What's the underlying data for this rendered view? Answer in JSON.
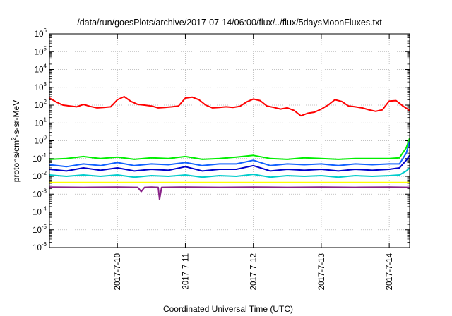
{
  "chart_data": {
    "type": "line",
    "title": "/data/run/goesPlots/archive/2017-07-14/06:00/flux/../flux/5daysMoonFluxes.txt",
    "xlabel": "Coordinated Universal Time (UTC)",
    "ylabel_base": "protons/cm",
    "ylabel_sup": "2",
    "ylabel_rest": "-s-sr-MeV",
    "yscale": "log",
    "ylim_exp": [
      -6,
      6
    ],
    "ytick_exponents": [
      "-6",
      "-5",
      "-4",
      "-3",
      "-2",
      "-1",
      "0",
      "1",
      "2",
      "3",
      "4",
      "5",
      "6"
    ],
    "xlim_days": [
      9.0,
      14.3
    ],
    "xticks": [
      {
        "label": "2017-7-10",
        "day": 10
      },
      {
        "label": "2017-7-11",
        "day": 11
      },
      {
        "label": "2017-7-12",
        "day": 12
      },
      {
        "label": "2017-7-13",
        "day": 13
      },
      {
        "label": "2017-7-14",
        "day": 14
      }
    ],
    "grid": true,
    "series_colors": [
      "#ff0000",
      "#00ee00",
      "#1060ff",
      "#0000cc",
      "#00cccc",
      "#ffff00",
      "#882288"
    ],
    "series": [
      {
        "color": "#ff0000",
        "x": [
          9.0,
          9.1,
          9.2,
          9.3,
          9.4,
          9.5,
          9.6,
          9.7,
          9.8,
          9.9,
          10.0,
          10.1,
          10.2,
          10.3,
          10.4,
          10.5,
          10.6,
          10.7,
          10.8,
          10.9,
          11.0,
          11.1,
          11.2,
          11.3,
          11.4,
          11.5,
          11.6,
          11.7,
          11.8,
          11.9,
          12.0,
          12.1,
          12.2,
          12.3,
          12.4,
          12.5,
          12.6,
          12.7,
          12.8,
          12.9,
          13.0,
          13.1,
          13.2,
          13.3,
          13.4,
          13.5,
          13.6,
          13.7,
          13.8,
          13.9,
          14.0,
          14.1,
          14.2,
          14.3
        ],
        "y": [
          250,
          150,
          100,
          90,
          80,
          110,
          85,
          70,
          75,
          80,
          200,
          300,
          160,
          110,
          100,
          90,
          70,
          75,
          80,
          90,
          250,
          280,
          200,
          100,
          70,
          75,
          80,
          75,
          85,
          150,
          220,
          180,
          90,
          75,
          60,
          70,
          50,
          25,
          35,
          40,
          60,
          100,
          200,
          160,
          90,
          80,
          70,
          55,
          45,
          55,
          170,
          180,
          90,
          50
        ]
      },
      {
        "color": "#00ee00",
        "x": [
          9.0,
          9.25,
          9.5,
          9.75,
          10.0,
          10.25,
          10.5,
          10.75,
          11.0,
          11.25,
          11.5,
          11.75,
          12.0,
          12.25,
          12.5,
          12.75,
          13.0,
          13.25,
          13.5,
          13.75,
          14.0,
          14.15,
          14.25,
          14.3
        ],
        "y": [
          0.09,
          0.1,
          0.13,
          0.1,
          0.12,
          0.09,
          0.11,
          0.1,
          0.13,
          0.09,
          0.1,
          0.12,
          0.15,
          0.1,
          0.09,
          0.11,
          0.1,
          0.09,
          0.1,
          0.1,
          0.1,
          0.11,
          0.4,
          1.4
        ]
      },
      {
        "color": "#1060ff",
        "x": [
          9.0,
          9.25,
          9.5,
          9.75,
          10.0,
          10.25,
          10.5,
          10.75,
          11.0,
          11.25,
          11.5,
          11.75,
          12.0,
          12.25,
          12.5,
          12.75,
          13.0,
          13.25,
          13.5,
          13.75,
          14.0,
          14.15,
          14.25,
          14.3
        ],
        "y": [
          0.045,
          0.035,
          0.05,
          0.04,
          0.06,
          0.04,
          0.05,
          0.045,
          0.06,
          0.04,
          0.05,
          0.05,
          0.08,
          0.04,
          0.05,
          0.045,
          0.05,
          0.04,
          0.05,
          0.045,
          0.05,
          0.05,
          0.2,
          0.9
        ]
      },
      {
        "color": "#0000cc",
        "x": [
          9.0,
          9.25,
          9.5,
          9.75,
          10.0,
          10.25,
          10.5,
          10.75,
          11.0,
          11.25,
          11.5,
          11.75,
          12.0,
          12.25,
          12.5,
          12.75,
          13.0,
          13.25,
          13.5,
          13.75,
          14.0,
          14.15,
          14.25,
          14.3
        ],
        "y": [
          0.025,
          0.02,
          0.03,
          0.022,
          0.03,
          0.02,
          0.025,
          0.022,
          0.035,
          0.02,
          0.025,
          0.025,
          0.04,
          0.02,
          0.025,
          0.022,
          0.025,
          0.02,
          0.025,
          0.022,
          0.025,
          0.03,
          0.08,
          0.15
        ]
      },
      {
        "color": "#00cccc",
        "x": [
          9.0,
          9.25,
          9.5,
          9.75,
          10.0,
          10.25,
          10.5,
          10.75,
          11.0,
          11.25,
          11.5,
          11.75,
          12.0,
          12.25,
          12.5,
          12.75,
          13.0,
          13.25,
          13.5,
          13.75,
          14.0,
          14.15,
          14.25,
          14.3
        ],
        "y": [
          0.012,
          0.01,
          0.012,
          0.01,
          0.012,
          0.009,
          0.011,
          0.01,
          0.012,
          0.009,
          0.011,
          0.01,
          0.013,
          0.009,
          0.011,
          0.01,
          0.011,
          0.009,
          0.011,
          0.01,
          0.011,
          0.012,
          0.02,
          0.03
        ]
      },
      {
        "color": "#ffff00",
        "x": [
          9.0,
          10.0,
          11.0,
          12.0,
          13.0,
          14.0,
          14.3
        ],
        "y": [
          0.0045,
          0.0045,
          0.0045,
          0.0045,
          0.0045,
          0.0045,
          0.0045
        ]
      },
      {
        "color": "#882288",
        "x": [
          9.0,
          9.5,
          10.0,
          10.3,
          10.35,
          10.4,
          10.5,
          10.6,
          10.62,
          10.65,
          11.0,
          11.5,
          12.0,
          12.5,
          13.0,
          13.5,
          14.0,
          14.3
        ],
        "y": [
          0.0025,
          0.0024,
          0.0025,
          0.0024,
          0.0014,
          0.0024,
          0.0025,
          0.0024,
          0.0005,
          0.0024,
          0.0025,
          0.0024,
          0.0025,
          0.0024,
          0.0025,
          0.0024,
          0.0025,
          0.0024
        ]
      }
    ]
  }
}
